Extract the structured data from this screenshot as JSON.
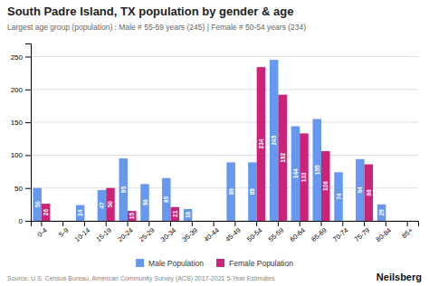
{
  "chart_data": {
    "type": "bar",
    "title": "South Padre Island, TX population by gender & age",
    "subtitle": "Largest age group (population) : Male # 55-59 years (245) | Female # 50-54 years (234)",
    "categories": [
      "0-4",
      "5-9",
      "10-14",
      "15-19",
      "20-24",
      "25-29",
      "30-34",
      "35-39",
      "40-44",
      "45-49",
      "50-54",
      "55-59",
      "60-64",
      "65-69",
      "70-74",
      "75-79",
      "80-84",
      "85+"
    ],
    "series": [
      {
        "name": "Male Population",
        "color": "#6699EE",
        "values": [
          50,
          0,
          24,
          47,
          95,
          56,
          65,
          18,
          0,
          89,
          89,
          245,
          144,
          155,
          74,
          94,
          25,
          0
        ]
      },
      {
        "name": "Female Population",
        "color": "#CC2277",
        "values": [
          26,
          0,
          0,
          50,
          15,
          0,
          21,
          0,
          0,
          0,
          234,
          192,
          133,
          106,
          0,
          86,
          0,
          0
        ]
      }
    ],
    "ylim": [
      0,
      270
    ],
    "yticks": [
      0,
      50,
      100,
      150,
      200,
      250
    ],
    "grid": true,
    "legend": "bottom",
    "data_labels": true,
    "annotations": [
      "Source: U.S. Census Bureau, American Community Survey (ACS) 2017-2021 5-Year Estimates",
      "Neilsberg"
    ]
  }
}
